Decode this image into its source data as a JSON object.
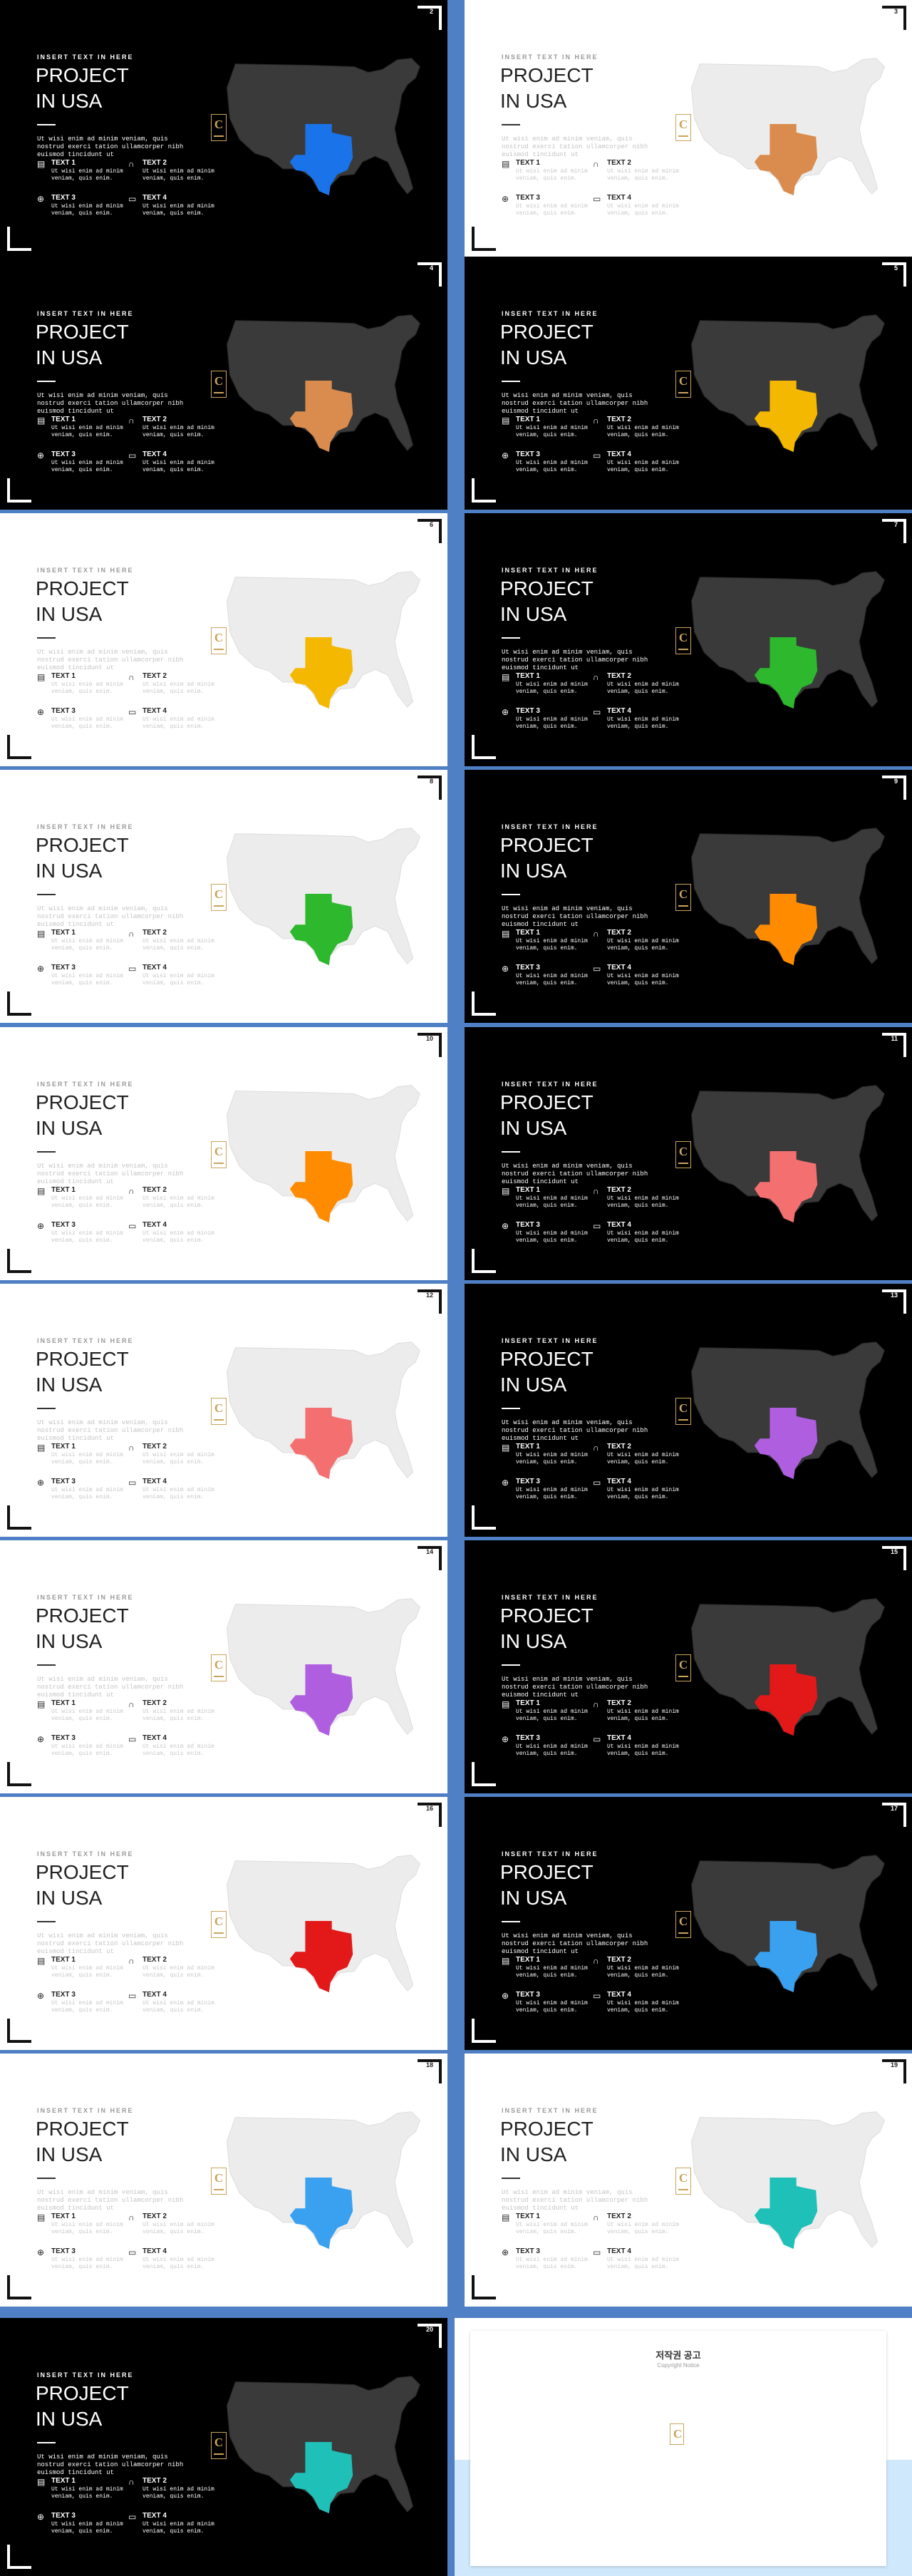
{
  "template": {
    "kicker": "INSERT TEXT IN HERE",
    "title_line1": "PROJECT",
    "title_line2": "IN USA",
    "body": "Ut wisi enim ad minim veniam, quis nostrud exerci tation ullamcorper nibh euismod tincidunt ut",
    "features": [
      {
        "label": "TEXT 1",
        "text": "Ut wisi enim ad minim veniam, quis enim.",
        "icon": "calendar-icon"
      },
      {
        "label": "TEXT 2",
        "text": "Ut wisi enim ad minim veniam, quis enim.",
        "icon": "headset-icon"
      },
      {
        "label": "TEXT 3",
        "text": "Ut wisi enim ad minim veniam, quis enim.",
        "icon": "globe-icon"
      },
      {
        "label": "TEXT 4",
        "text": "Ut wisi enim ad minim veniam, quis enim.",
        "icon": "monitor-icon"
      }
    ],
    "badge_letter": "C"
  },
  "slides": [
    {
      "num": "2",
      "theme": "dark",
      "color": "#1a73e8"
    },
    {
      "num": "3",
      "theme": "light",
      "color": "#d98c4e"
    },
    {
      "num": "4",
      "theme": "dark",
      "color": "#d98c4e"
    },
    {
      "num": "5",
      "theme": "dark",
      "color": "#f5b800"
    },
    {
      "num": "6",
      "theme": "light",
      "color": "#f5b800"
    },
    {
      "num": "7",
      "theme": "dark",
      "color": "#2db82d"
    },
    {
      "num": "8",
      "theme": "light",
      "color": "#2db82d"
    },
    {
      "num": "9",
      "theme": "dark",
      "color": "#ff8c00"
    },
    {
      "num": "10",
      "theme": "light",
      "color": "#ff8c00"
    },
    {
      "num": "11",
      "theme": "dark",
      "color": "#f47070"
    },
    {
      "num": "12",
      "theme": "light",
      "color": "#f47070"
    },
    {
      "num": "13",
      "theme": "dark",
      "color": "#b05ee0"
    },
    {
      "num": "14",
      "theme": "light",
      "color": "#b05ee0"
    },
    {
      "num": "15",
      "theme": "dark",
      "color": "#e31919"
    },
    {
      "num": "16",
      "theme": "light",
      "color": "#e31919"
    },
    {
      "num": "17",
      "theme": "dark",
      "color": "#3aa0f0"
    },
    {
      "num": "18",
      "theme": "light",
      "color": "#3aa0f0"
    },
    {
      "num": "19",
      "theme": "light",
      "color": "#1fc0b8"
    },
    {
      "num": "20",
      "theme": "dark",
      "color": "#1fc0b8"
    }
  ],
  "notice": {
    "title": "저작권 공고",
    "subtitle": "Copyright Notice",
    "paragraphs": [
      "",
      "",
      "",
      "",
      ""
    ]
  }
}
